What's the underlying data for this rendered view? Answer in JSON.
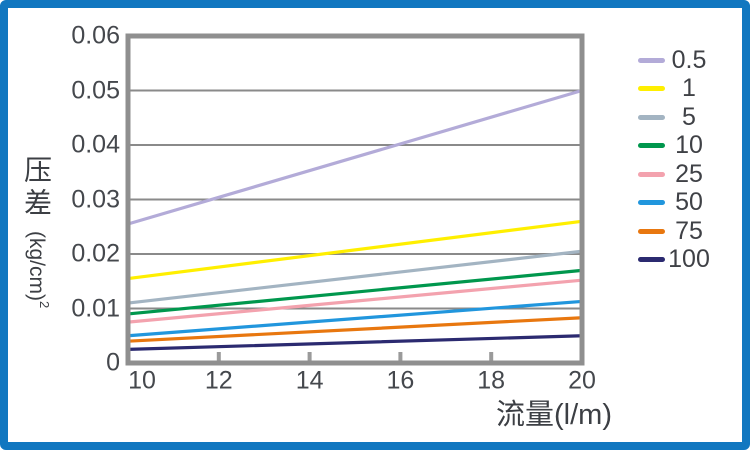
{
  "page": {
    "background": "#ffffff",
    "border_color": "#1177c0"
  },
  "chart_data": {
    "type": "line",
    "title": "",
    "xlabel": "流量(l/m)",
    "ylabel": "压差 (kg/cm)²",
    "ylabel_main": "压差",
    "ylabel_unit": "(kg/cm)",
    "ylabel_exponent": "2",
    "xlim": [
      10,
      20
    ],
    "ylim": [
      0,
      0.06
    ],
    "x_ticks": [
      "10",
      "12",
      "14",
      "16",
      "18",
      "20"
    ],
    "y_ticks": [
      "0",
      "0.01",
      "0.02",
      "0.03",
      "0.04",
      "0.05",
      "0.06"
    ],
    "grid": "horizontal",
    "legend_position": "right",
    "x": [
      10,
      20
    ],
    "series": [
      {
        "name": "0.5",
        "color": "#b3abd8",
        "values": [
          0.0255,
          0.05
        ]
      },
      {
        "name": "1",
        "color": "#ffef00",
        "values": [
          0.0155,
          0.026
        ]
      },
      {
        "name": "5",
        "color": "#a3b4c2",
        "values": [
          0.011,
          0.0205
        ]
      },
      {
        "name": "10",
        "color": "#00974d",
        "values": [
          0.009,
          0.017
        ]
      },
      {
        "name": "25",
        "color": "#f3a2ae",
        "values": [
          0.0075,
          0.0152
        ]
      },
      {
        "name": "50",
        "color": "#2196dd",
        "values": [
          0.005,
          0.0113
        ]
      },
      {
        "name": "75",
        "color": "#e8770f",
        "values": [
          0.004,
          0.0083
        ]
      },
      {
        "name": "100",
        "color": "#2b2a70",
        "values": [
          0.0025,
          0.005
        ]
      }
    ],
    "colors": {
      "grid": "#8a8a8a",
      "frame": "#8f8f8f",
      "tick_mark": "#9a9a9a",
      "axis_text": "#45484d"
    }
  }
}
